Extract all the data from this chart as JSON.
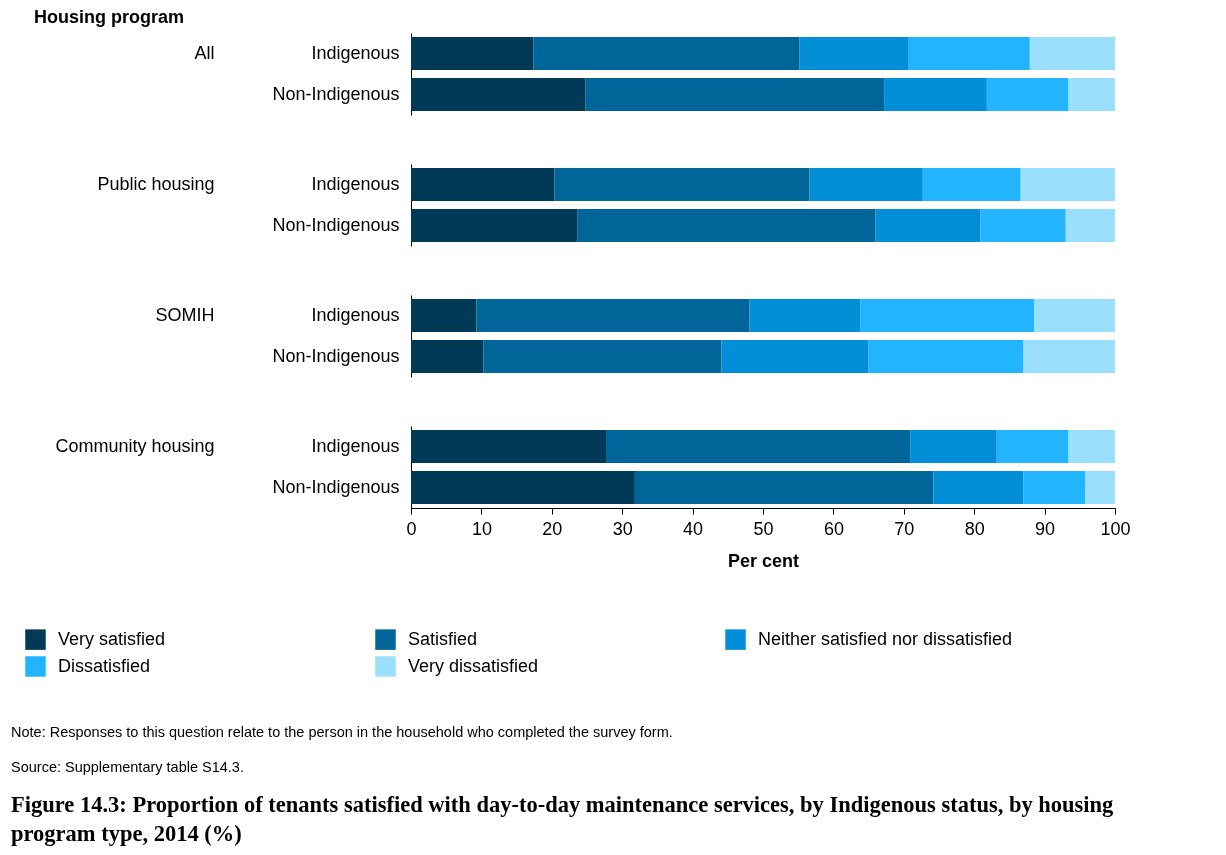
{
  "chart_data": [
    {
      "type": "bar",
      "orientation": "horizontal",
      "stacked": true,
      "ylabel": "All",
      "title": "Figure 14.3: Proportion of tenants satisfied with day-to-day maintenance services, by Indigenous status, by housing program type, 2014 (%)",
      "annotations": [
        "Housing program",
        "Note: Responses to this question relate to the person in the household who completed the survey form.",
        "Source: Supplementary table S14.3."
      ],
      "categories": [
        "Indigenous",
        "Non-Indigenous"
      ],
      "xlim": [
        0,
        100
      ],
      "tick_labels": "y",
      "series": [
        {
          "color": "#003a57",
          "values": [
            17.4,
            24.8
          ]
        },
        {
          "color": "#006699",
          "values": [
            37.8,
            42.4
          ]
        },
        {
          "color": "#038fd8",
          "values": [
            15.5,
            14.6
          ]
        },
        {
          "color": "#22b4ff",
          "values": [
            17.2,
            11.6
          ]
        },
        {
          "color": "#9bdfff",
          "values": [
            12.1,
            6.6
          ]
        }
      ]
    },
    {
      "type": "bar",
      "orientation": "horizontal",
      "stacked": true,
      "ylabel": "Public housing",
      "categories": [
        "Indigenous",
        "Non-Indigenous"
      ],
      "xlim": [
        0,
        100
      ],
      "tick_labels": "y",
      "series": [
        {
          "color": "#003a57",
          "values": [
            20.4,
            23.6
          ]
        },
        {
          "color": "#006699",
          "values": [
            36.2,
            42.4
          ]
        },
        {
          "color": "#038fd8",
          "values": [
            16.1,
            14.9
          ]
        },
        {
          "color": "#22b4ff",
          "values": [
            13.9,
            12.1
          ]
        },
        {
          "color": "#9bdfff",
          "values": [
            13.4,
            7.0
          ]
        }
      ]
    },
    {
      "type": "bar",
      "orientation": "horizontal",
      "stacked": true,
      "ylabel": "SOMIH",
      "categories": [
        "Indigenous",
        "Non-Indigenous"
      ],
      "xlim": [
        0,
        100
      ],
      "tick_labels": "y",
      "series": [
        {
          "color": "#003a57",
          "values": [
            9.3,
            10.3
          ]
        },
        {
          "color": "#006699",
          "values": [
            38.8,
            33.8
          ]
        },
        {
          "color": "#038fd8",
          "values": [
            15.7,
            20.9
          ]
        },
        {
          "color": "#22b4ff",
          "values": [
            24.7,
            22.0
          ]
        },
        {
          "color": "#9bdfff",
          "values": [
            11.5,
            13.0
          ]
        }
      ]
    },
    {
      "type": "bar",
      "orientation": "horizontal",
      "stacked": true,
      "ylabel": "Community housing",
      "xlabel": "Per cent",
      "categories": [
        "Indigenous",
        "Non-Indigenous"
      ],
      "xlim": [
        0,
        100
      ],
      "xticks": [
        0,
        10,
        20,
        30,
        40,
        50,
        60,
        70,
        80,
        90,
        100
      ],
      "legend": "bottom",
      "series": [
        {
          "name": "Very satisfied",
          "color": "#003a57",
          "values": [
            27.7,
            31.8
          ]
        },
        {
          "name": "Satisfied",
          "color": "#006699",
          "values": [
            43.2,
            42.4
          ]
        },
        {
          "name": "Neither satisfied nor dissatisfied",
          "color": "#038fd8",
          "values": [
            12.3,
            12.8
          ]
        },
        {
          "name": "Dissatisfied",
          "color": "#22b4ff",
          "values": [
            10.2,
            8.8
          ]
        },
        {
          "name": "Very dissatisfied",
          "color": "#9bdfff",
          "values": [
            6.6,
            4.2
          ]
        }
      ]
    }
  ]
}
